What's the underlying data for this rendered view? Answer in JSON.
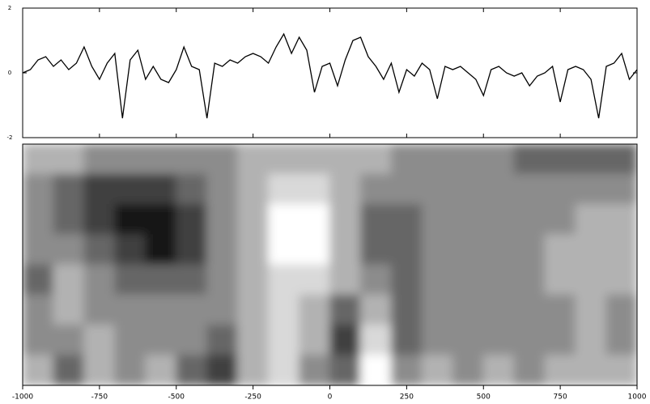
{
  "chart_data": [
    {
      "type": "line",
      "color": "#000000",
      "xlim": [
        -1000,
        1000
      ],
      "ylim": [
        -2,
        2
      ],
      "yticks": [
        -2,
        0,
        2
      ],
      "x": [
        -1000,
        -975,
        -950,
        -925,
        -900,
        -875,
        -850,
        -825,
        -800,
        -775,
        -750,
        -725,
        -700,
        -675,
        -650,
        -625,
        -600,
        -575,
        -550,
        -525,
        -500,
        -475,
        -450,
        -425,
        -400,
        -375,
        -350,
        -325,
        -300,
        -275,
        -250,
        -225,
        -200,
        -175,
        -150,
        -125,
        -100,
        -75,
        -50,
        -25,
        0,
        25,
        50,
        75,
        100,
        125,
        150,
        175,
        200,
        225,
        250,
        275,
        300,
        325,
        350,
        375,
        400,
        425,
        450,
        475,
        500,
        525,
        550,
        575,
        600,
        625,
        650,
        675,
        700,
        725,
        750,
        775,
        800,
        825,
        850,
        875,
        900,
        925,
        950,
        975,
        1000
      ],
      "values": [
        0,
        0.1,
        0.4,
        0.5,
        0.2,
        0.4,
        0.1,
        0.3,
        0.8,
        0.2,
        -0.2,
        0.3,
        0.6,
        -1.4,
        0.4,
        0.7,
        -0.2,
        0.2,
        -0.2,
        -0.3,
        0.1,
        0.8,
        0.2,
        0.1,
        -1.4,
        0.3,
        0.2,
        0.4,
        0.3,
        0.5,
        0.6,
        0.5,
        0.3,
        0.8,
        1.2,
        0.6,
        1.1,
        0.7,
        -0.6,
        0.2,
        0.3,
        -0.4,
        0.4,
        1.0,
        1.1,
        0.5,
        0.2,
        -0.2,
        0.3,
        -0.6,
        0.1,
        -0.1,
        0.3,
        0.1,
        -0.8,
        0.2,
        0.1,
        0.2,
        0.0,
        -0.2,
        -0.7,
        0.1,
        0.2,
        0.0,
        -0.1,
        0.0,
        -0.4,
        -0.1,
        0.0,
        0.2,
        -0.9,
        0.1,
        0.2,
        0.1,
        -0.2,
        -1.4,
        0.2,
        0.3,
        0.6,
        -0.2,
        0.1
      ]
    },
    {
      "type": "heatmap",
      "xlim": [
        -1000,
        1000
      ],
      "xticks": [
        -1000,
        -750,
        -500,
        -250,
        0,
        250,
        500,
        750,
        1000
      ],
      "zlim": [
        0,
        6
      ],
      "z": [
        [
          4,
          4,
          3,
          3,
          3,
          3,
          3,
          4,
          4,
          4,
          4,
          4,
          3,
          3,
          3,
          3,
          2,
          2,
          2,
          2
        ],
        [
          3,
          2,
          1,
          1,
          1,
          2,
          3,
          4,
          5,
          5,
          4,
          3,
          3,
          3,
          3,
          3,
          3,
          3,
          3,
          3
        ],
        [
          3,
          2,
          1,
          0,
          0,
          1,
          3,
          4,
          6,
          6,
          4,
          2,
          2,
          3,
          3,
          3,
          3,
          3,
          4,
          4
        ],
        [
          3,
          3,
          2,
          1,
          0,
          1,
          3,
          4,
          6,
          6,
          4,
          2,
          2,
          3,
          3,
          3,
          3,
          4,
          4,
          4
        ],
        [
          2,
          4,
          3,
          2,
          2,
          2,
          3,
          4,
          5,
          5,
          4,
          3,
          2,
          3,
          3,
          3,
          3,
          4,
          4,
          4
        ],
        [
          3,
          4,
          3,
          3,
          3,
          3,
          3,
          4,
          5,
          4,
          2,
          4,
          2,
          3,
          3,
          3,
          3,
          3,
          4,
          3
        ],
        [
          3,
          3,
          4,
          3,
          3,
          3,
          2,
          4,
          5,
          4,
          1,
          5,
          2,
          3,
          3,
          3,
          3,
          3,
          4,
          3
        ],
        [
          4,
          2,
          4,
          3,
          4,
          2,
          1,
          4,
          5,
          3,
          2,
          6,
          3,
          4,
          3,
          4,
          3,
          4,
          4,
          4
        ]
      ]
    }
  ]
}
